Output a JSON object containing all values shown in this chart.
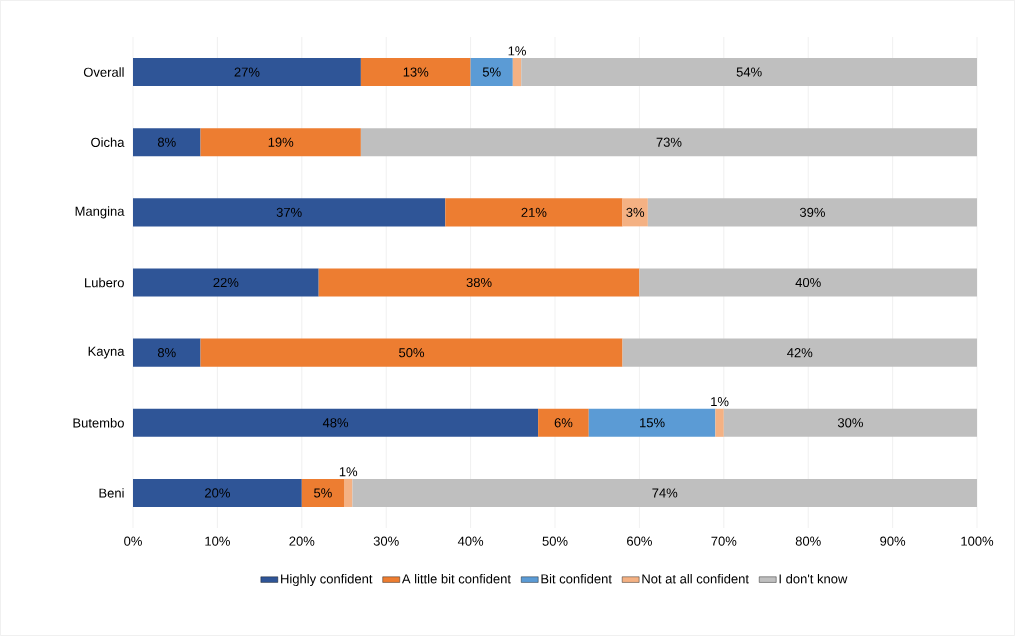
{
  "chart_data": {
    "type": "bar",
    "orientation": "horizontal",
    "stacked": true,
    "categories": [
      "Overall",
      "Oicha",
      "Mangina",
      "Lubero",
      "Kayna",
      "Butembo",
      "Beni"
    ],
    "series": [
      {
        "name": "Highly confident",
        "color": "#2f5597",
        "values": [
          27,
          8,
          37,
          22,
          8,
          48,
          20
        ],
        "value_labels": [
          "27%",
          "8%",
          "37%",
          "22%",
          "8%",
          "48%",
          "20%"
        ]
      },
      {
        "name": "A little bit confident",
        "color": "#ed7d31",
        "values": [
          13,
          19,
          21,
          38,
          50,
          6,
          5
        ],
        "value_labels": [
          "13%",
          "19%",
          "21%",
          "38%",
          "50%",
          "6%",
          "5%"
        ]
      },
      {
        "name": "Bit confident",
        "color": "#5b9bd5",
        "values": [
          5,
          null,
          null,
          null,
          null,
          15,
          null
        ],
        "value_labels": [
          "5%",
          null,
          null,
          null,
          null,
          "15%",
          null
        ]
      },
      {
        "name": "Not at all confident",
        "color": "#f4b183",
        "values": [
          1,
          null,
          3,
          null,
          null,
          1,
          1
        ],
        "value_labels": [
          "1%",
          null,
          "3%",
          null,
          null,
          "1%",
          "1%"
        ]
      },
      {
        "name": "I don't know",
        "color": "#bfbfbf",
        "values": [
          54,
          73,
          39,
          40,
          42,
          30,
          74
        ],
        "value_labels": [
          "54%",
          "73%",
          "39%",
          "40%",
          "42%",
          "30%",
          "74%"
        ]
      }
    ],
    "xlim": [
      0,
      100
    ],
    "xticks": [
      {
        "value": 0,
        "label": "0%"
      },
      {
        "value": 10,
        "label": "10%"
      },
      {
        "value": 20,
        "label": "20%"
      },
      {
        "value": 30,
        "label": "30%"
      },
      {
        "value": 40,
        "label": "40%"
      },
      {
        "value": 50,
        "label": "50%"
      },
      {
        "value": 60,
        "label": "60%"
      },
      {
        "value": 70,
        "label": "70%"
      },
      {
        "value": 80,
        "label": "80%"
      },
      {
        "value": 90,
        "label": "90%"
      },
      {
        "value": 100,
        "label": "100%"
      }
    ],
    "grid": "x",
    "legend": "bottom"
  }
}
